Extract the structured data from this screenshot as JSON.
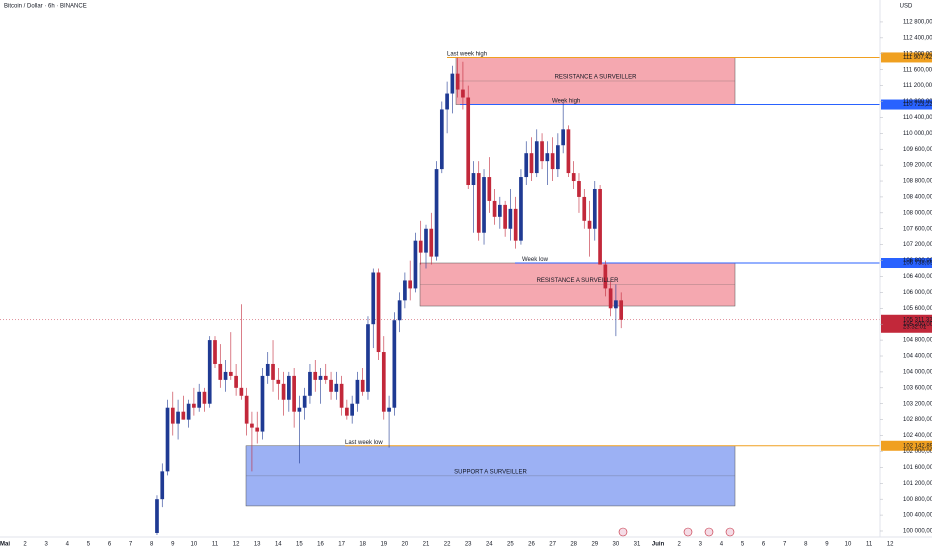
{
  "chart_data": {
    "type": "candlestick",
    "title": "Bitcoin / Dollar · 6h · BINANCE",
    "currency": "USD",
    "xticks": [
      "Mai",
      "2",
      "3",
      "4",
      "5",
      "6",
      "7",
      "8",
      "9",
      "10",
      "11",
      "12",
      "13",
      "14",
      "15",
      "16",
      "17",
      "18",
      "19",
      "20",
      "21",
      "22",
      "23",
      "24",
      "25",
      "26",
      "27",
      "28",
      "29",
      "30",
      "31",
      "Juin",
      "2",
      "3",
      "4",
      "5",
      "6",
      "7",
      "8",
      "9",
      "10",
      "11",
      "12"
    ],
    "ylim": [
      99849,
      113352
    ],
    "yticks": [
      {
        "value": 100000,
        "label": "100 000,00"
      },
      {
        "value": 100400,
        "label": "100 400,00"
      },
      {
        "value": 100800,
        "label": "100 800,00"
      },
      {
        "value": 101200,
        "label": "101 200,00"
      },
      {
        "value": 101600,
        "label": "101 600,00"
      },
      {
        "value": 102000,
        "label": "102 000,00"
      },
      {
        "value": 102400,
        "label": "102 400,00"
      },
      {
        "value": 102800,
        "label": "102 800,00"
      },
      {
        "value": 103200,
        "label": "103 200,00"
      },
      {
        "value": 103600,
        "label": "103 600,00"
      },
      {
        "value": 104000,
        "label": "104 000,00"
      },
      {
        "value": 104400,
        "label": "104 400,00"
      },
      {
        "value": 104800,
        "label": "104 800,00"
      },
      {
        "value": 105200,
        "label": "105 200,00"
      },
      {
        "value": 105600,
        "label": "105 600,00"
      },
      {
        "value": 106000,
        "label": "106 000,00"
      },
      {
        "value": 106400,
        "label": "106 400,00"
      },
      {
        "value": 106800,
        "label": "106 800,00"
      },
      {
        "value": 107200,
        "label": "107 200,00"
      },
      {
        "value": 107600,
        "label": "107 600,00"
      },
      {
        "value": 108000,
        "label": "108 000,00"
      },
      {
        "value": 108400,
        "label": "108 400,00"
      },
      {
        "value": 108800,
        "label": "108 800,00"
      },
      {
        "value": 109200,
        "label": "109 200,00"
      },
      {
        "value": 109600,
        "label": "109 600,00"
      },
      {
        "value": 110000,
        "label": "110 000,00"
      },
      {
        "value": 110400,
        "label": "110 400,00"
      },
      {
        "value": 110800,
        "label": "110 800,00"
      },
      {
        "value": 111200,
        "label": "111 200,00"
      },
      {
        "value": 111600,
        "label": "111 600,00"
      },
      {
        "value": 112000,
        "label": "112 000,00"
      },
      {
        "value": 112400,
        "label": "112 400,00"
      },
      {
        "value": 112800,
        "label": "112 800,00"
      }
    ],
    "up_color": "#1f3a93",
    "down_color": "#c2283a",
    "open": [
      99950,
      100800,
      101500,
      103100,
      102700,
      103000,
      102800,
      103200,
      103100,
      103500,
      103200,
      104800,
      104200,
      103800,
      104000,
      103900,
      103600,
      103400,
      102700,
      102600,
      102500,
      103900,
      104200,
      103800,
      103700,
      103300,
      103900,
      103000,
      103100,
      103400,
      104000,
      103800,
      103900,
      103800,
      103500,
      103700,
      103100,
      102900,
      103200,
      103800,
      103500,
      105200,
      106500,
      104500,
      103000,
      103100,
      105300,
      105800,
      106300,
      106100,
      107300,
      107000,
      107600,
      106900,
      109100,
      110600,
      111000,
      111500,
      111100,
      110900,
      108700,
      109000,
      107500,
      108900,
      108300,
      107900,
      108200,
      107600,
      108100,
      107300,
      108900,
      109500,
      109000,
      109800,
      109300,
      109500,
      109100,
      109700,
      110100,
      109000,
      108800,
      108400,
      107800,
      107600,
      108600,
      106700,
      106100,
      105600,
      105800
    ],
    "high": [
      100900,
      101700,
      103300,
      103500,
      103300,
      103400,
      103300,
      103600,
      103700,
      103600,
      104900,
      104900,
      104700,
      104300,
      105000,
      104200,
      105700,
      103600,
      103000,
      103000,
      104100,
      104500,
      104800,
      104100,
      104000,
      104000,
      104100,
      103400,
      103600,
      104200,
      104300,
      104100,
      104200,
      104000,
      104000,
      103900,
      103300,
      103400,
      104000,
      104100,
      105400,
      106600,
      106600,
      104900,
      103400,
      105500,
      106000,
      106500,
      106800,
      107500,
      107800,
      107700,
      108000,
      109300,
      110800,
      111300,
      111700,
      111900,
      111800,
      111200,
      109300,
      109300,
      109100,
      109400,
      108600,
      108400,
      108300,
      108600,
      108400,
      109100,
      109800,
      109900,
      110100,
      110000,
      109800,
      109900,
      110000,
      110800,
      110200,
      109300,
      109000,
      108600,
      108300,
      108800,
      108700,
      106800,
      106300,
      106200,
      106000
    ],
    "low": [
      99900,
      100600,
      101400,
      102400,
      102300,
      102800,
      102600,
      102900,
      103000,
      103000,
      103100,
      104100,
      103600,
      103500,
      103800,
      103400,
      103300,
      102400,
      101500,
      102200,
      102300,
      103700,
      103500,
      103300,
      102900,
      103000,
      102600,
      101700,
      102800,
      103200,
      103500,
      103200,
      103700,
      103300,
      103300,
      102900,
      102800,
      102700,
      103000,
      103400,
      103300,
      104600,
      104300,
      102800,
      102100,
      102900,
      105000,
      105600,
      105800,
      106000,
      106700,
      106600,
      106700,
      106800,
      109000,
      110000,
      110500,
      110900,
      110600,
      108600,
      107500,
      107300,
      107200,
      108000,
      107700,
      107600,
      107400,
      107300,
      107100,
      107200,
      108700,
      108800,
      108900,
      109100,
      108700,
      108800,
      108900,
      109500,
      108900,
      108600,
      108000,
      107600,
      106900,
      107300,
      106700,
      105900,
      105400,
      104900,
      105100
    ],
    "close": [
      100800,
      101500,
      103100,
      102700,
      103000,
      102800,
      103200,
      103100,
      103500,
      103200,
      104800,
      104200,
      103800,
      104000,
      103900,
      103600,
      103400,
      102700,
      102600,
      102500,
      103900,
      104200,
      103800,
      103700,
      103300,
      103900,
      103000,
      103100,
      103400,
      104000,
      103800,
      103900,
      103800,
      103500,
      103700,
      103100,
      102900,
      103200,
      103800,
      103500,
      105200,
      106500,
      104500,
      103000,
      103100,
      105300,
      105800,
      106300,
      106100,
      107300,
      107000,
      107600,
      106900,
      109100,
      110600,
      111000,
      111500,
      111100,
      110900,
      108700,
      109000,
      107500,
      108900,
      108300,
      107900,
      108200,
      107600,
      108100,
      107300,
      108900,
      109500,
      109000,
      109800,
      109300,
      109500,
      109100,
      109700,
      110100,
      109000,
      108800,
      108400,
      107800,
      107600,
      108600,
      106700,
      106100,
      105600,
      105800,
      105311.32
    ],
    "levels": [
      {
        "name": "Last week high",
        "value": 111907.42,
        "label": "111 907,42",
        "color": "#f0a020"
      },
      {
        "name": "Week high",
        "value": 110723.22,
        "label": "110 723,22",
        "color": "#2962ff"
      },
      {
        "name": "Week low",
        "value": 106738.69,
        "label": "106 738,69",
        "color": "#2962ff"
      },
      {
        "name": "Last week low",
        "value": 102142.89,
        "label": "102 142,89",
        "color": "#f0a020"
      }
    ],
    "zones": [
      {
        "name": "RESISTANCE A SURVEILLER",
        "top": 111907.42,
        "bottom": 110723.22,
        "color": "#f28b95"
      },
      {
        "name": "RESISTANCE A SURVEILLER",
        "top": 106738.69,
        "bottom": 105657,
        "color": "#f28b95"
      },
      {
        "name": "SUPPORT A SURVEILLER",
        "top": 102142.89,
        "bottom": 100630,
        "color": "#7b97f0"
      }
    ],
    "last_price": {
      "value": 105311.32,
      "label": "105 311,32",
      "countdown": "23:32:01",
      "color": "#c2283a"
    }
  }
}
